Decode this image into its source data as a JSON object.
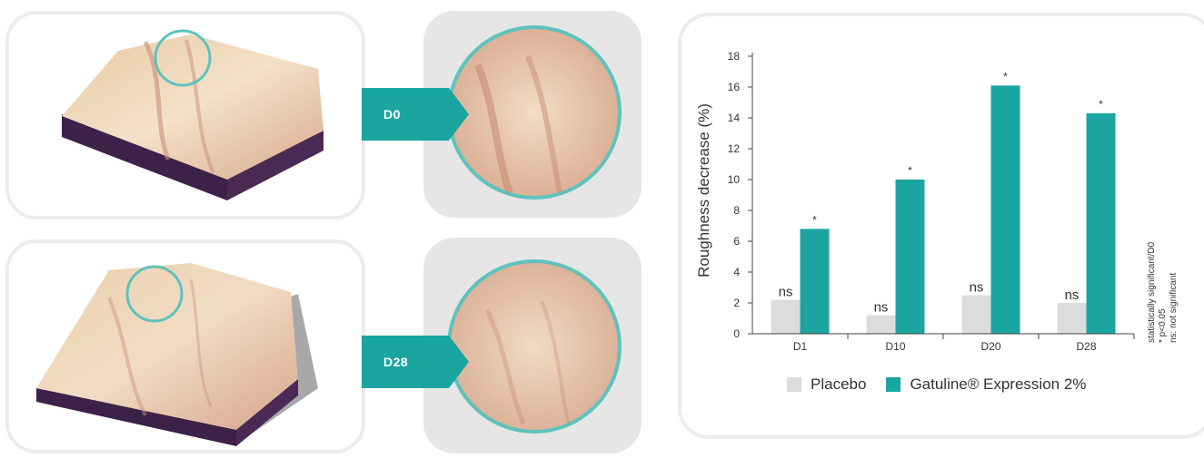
{
  "tags": {
    "d0": "D0",
    "d28": "D28"
  },
  "images": {
    "d0_surface": "skin-surface-3d-D0",
    "d0_zoom": "skin-surface-zoom-D0",
    "d28_surface": "skin-surface-3d-D28",
    "d28_zoom": "skin-surface-zoom-D28"
  },
  "chart_data": {
    "type": "bar",
    "title": "",
    "xlabel": "",
    "ylabel": "Roughness decrease (%)",
    "ylim": [
      0,
      18
    ],
    "yticks": [
      0,
      2,
      4,
      6,
      8,
      10,
      12,
      14,
      16,
      18
    ],
    "categories": [
      "D1",
      "D10",
      "D20",
      "D28"
    ],
    "series": [
      {
        "name": "Placebo",
        "values": [
          2.2,
          1.2,
          2.5,
          2.0
        ],
        "labels": [
          "ns",
          "ns",
          "ns",
          "ns"
        ],
        "color": "#dcdcdc"
      },
      {
        "name": "Gatuline® Expression 2%",
        "values": [
          6.8,
          10.0,
          16.1,
          14.3
        ],
        "labels": [
          "*",
          "*",
          "*",
          "*"
        ],
        "color": "#1aa5a0"
      }
    ],
    "legend_position": "bottom",
    "grid": false,
    "notes": [
      "statistically significant/D0",
      "* p<0.05",
      "ns: not significant"
    ]
  }
}
